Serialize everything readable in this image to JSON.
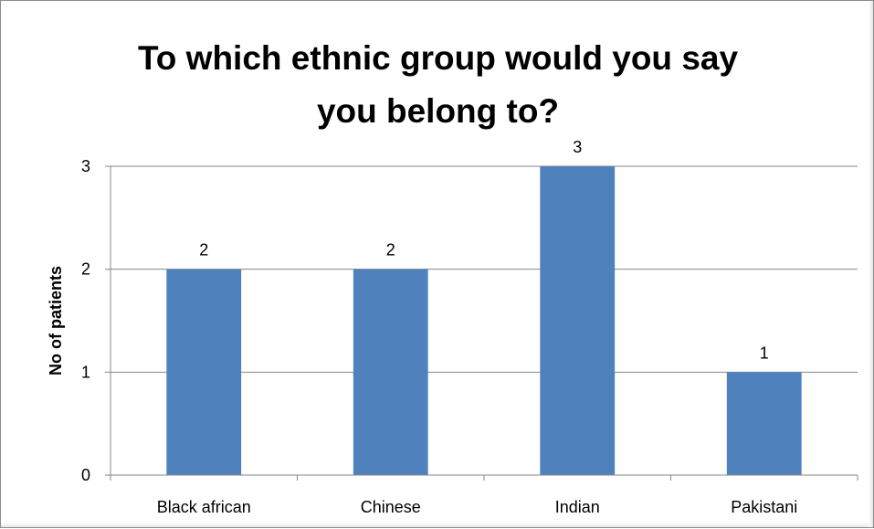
{
  "chart_data": {
    "type": "bar",
    "title": [
      "To which ethnic group would you say",
      "you belong to?"
    ],
    "xlabel": "",
    "ylabel": "No of patients",
    "categories": [
      "Black african",
      "Chinese",
      "Indian",
      "Pakistani"
    ],
    "values": [
      2,
      2,
      3,
      1
    ],
    "data_labels": [
      "2",
      "2",
      "3",
      "1"
    ],
    "ylim": [
      0,
      3
    ],
    "yticks": [
      0,
      1,
      2,
      3
    ],
    "grid": true,
    "legend": "none",
    "colors": {
      "bar": "#4f81bd",
      "grid": "#868686",
      "axis": "#868686",
      "text": "#000000"
    }
  }
}
